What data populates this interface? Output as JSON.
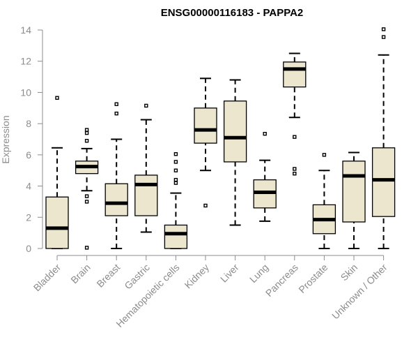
{
  "chart_data": {
    "type": "boxplot",
    "title": "ENSG00000116183 - PAPPA2",
    "xlabel": "",
    "ylabel": "Expression",
    "ylim": [
      0,
      14
    ],
    "yticks": [
      0,
      2,
      4,
      6,
      8,
      10,
      12,
      14
    ],
    "colors": {
      "box_fill": "#ede6cf",
      "stroke": "#000000",
      "axis": "#8c8c8c",
      "outlier": "#000000"
    },
    "categories": [
      "Bladder",
      "Brain",
      "Breast",
      "Gastric",
      "Hematopoietic cells",
      "Kidney",
      "Liver",
      "Lung",
      "Pancreas",
      "Prostate",
      "Skin",
      "Unknown / Other"
    ],
    "boxes": [
      {
        "label": "Bladder",
        "whisker_low": 0,
        "q1": 0,
        "median": 1.3,
        "q3": 3.3,
        "whisker_high": 6.45,
        "outliers": [
          9.65
        ]
      },
      {
        "label": "Brain",
        "whisker_low": 3.7,
        "q1": 4.8,
        "median": 5.25,
        "q3": 5.6,
        "whisker_high": 6.4,
        "outliers": [
          7.6,
          7.4,
          6.9,
          3.35,
          3.0,
          0.05
        ]
      },
      {
        "label": "Breast",
        "whisker_low": 0,
        "q1": 2.1,
        "median": 2.9,
        "q3": 4.15,
        "whisker_high": 7.0,
        "outliers": [
          9.25,
          8.65
        ]
      },
      {
        "label": "Gastric",
        "whisker_low": 1.05,
        "q1": 2.1,
        "median": 4.1,
        "q3": 4.7,
        "whisker_high": 8.25,
        "outliers": [
          9.15
        ]
      },
      {
        "label": "Hematopoietic cells",
        "whisker_low": 0,
        "q1": 0,
        "median": 0.95,
        "q3": 1.5,
        "whisker_high": 3.55,
        "outliers": [
          6.05,
          5.55,
          5.0,
          4.4,
          4.2
        ]
      },
      {
        "label": "Kidney",
        "whisker_low": 5.0,
        "q1": 6.75,
        "median": 7.6,
        "q3": 9.0,
        "whisker_high": 10.9,
        "outliers": [
          2.75
        ]
      },
      {
        "label": "Liver",
        "whisker_low": 1.5,
        "q1": 5.55,
        "median": 7.1,
        "q3": 9.45,
        "whisker_high": 10.8,
        "outliers": []
      },
      {
        "label": "Lung",
        "whisker_low": 1.75,
        "q1": 2.6,
        "median": 3.6,
        "q3": 4.4,
        "whisker_high": 5.65,
        "outliers": [
          7.35
        ]
      },
      {
        "label": "Pancreas",
        "whisker_low": 8.4,
        "q1": 10.35,
        "median": 11.5,
        "q3": 11.95,
        "whisker_high": 12.5,
        "outliers": [
          7.15,
          5.1,
          4.8
        ]
      },
      {
        "label": "Prostate",
        "whisker_low": 0,
        "q1": 0.95,
        "median": 1.85,
        "q3": 2.8,
        "whisker_high": 5.0,
        "outliers": [
          6.0
        ]
      },
      {
        "label": "Skin",
        "whisker_low": 0,
        "q1": 1.7,
        "median": 4.65,
        "q3": 5.6,
        "whisker_high": 6.15,
        "outliers": []
      },
      {
        "label": "Unknown / Other",
        "whisker_low": 0,
        "q1": 2.05,
        "median": 4.4,
        "q3": 6.45,
        "whisker_high": 12.4,
        "outliers": [
          14.05,
          13.55
        ]
      }
    ]
  }
}
